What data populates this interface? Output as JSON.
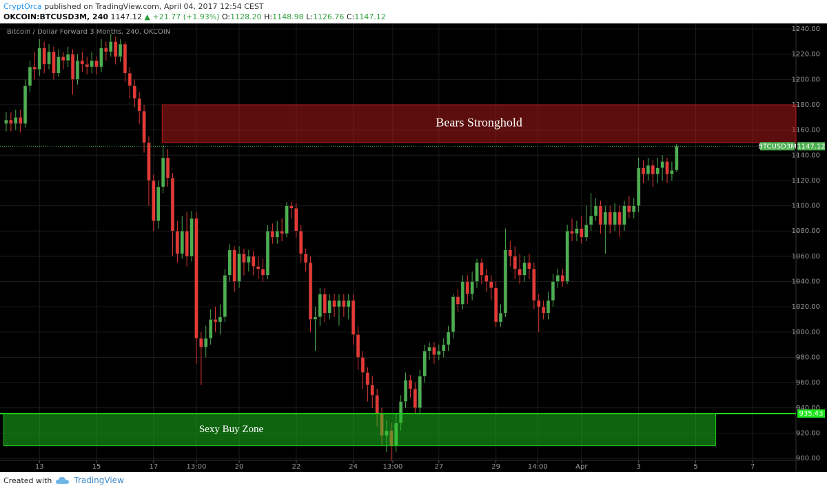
{
  "header": {
    "author": "CryptOrca",
    "published": "published on TradingView.com, April 04, 2017 12:54 CEST",
    "symbol": "OKCOIN:BTCUSD3M, 240",
    "last": "1147.12",
    "change": "▲ +21.77 (+1.93%)",
    "ohlc": [
      {
        "label": "O:",
        "value": "1128.20"
      },
      {
        "label": "H:",
        "value": "1148.98"
      },
      {
        "label": "L:",
        "value": "1126.76"
      },
      {
        "label": "C:",
        "value": "1147.12"
      }
    ]
  },
  "footer": {
    "created": "Created with",
    "brand": "TradingView"
  },
  "chart_data": {
    "type": "candlestick",
    "title": "Bitcoin / Dollar Forward 3 Months, 240, OKCOIN",
    "up_color": "#4caf50",
    "down_color": "#e53935",
    "grid": true,
    "x": [
      -7,
      -6,
      -5,
      -4,
      -3,
      -2,
      -1,
      0,
      1,
      2,
      3,
      4,
      5,
      6,
      7,
      8,
      9,
      10,
      11,
      12,
      13,
      14,
      15,
      16,
      17,
      18,
      19,
      20,
      21,
      22,
      23,
      24,
      25,
      26,
      27,
      28,
      29,
      30,
      31,
      32,
      33,
      34,
      35,
      36,
      37,
      38,
      39,
      40,
      41,
      42,
      43,
      44,
      45,
      46,
      47,
      48,
      49,
      50,
      51,
      52,
      53,
      54,
      55,
      56,
      57,
      58,
      59,
      60,
      61,
      62,
      63,
      64,
      65,
      66,
      67,
      68,
      69,
      70,
      71,
      72,
      73,
      74,
      75,
      76,
      77,
      78,
      79,
      80,
      81,
      82,
      83,
      84,
      85,
      86,
      87,
      88,
      89,
      90,
      91,
      92,
      93,
      94,
      95,
      96,
      97,
      98,
      99,
      100,
      101,
      102,
      103,
      104,
      105,
      106,
      107,
      108,
      109,
      110,
      111,
      112,
      113,
      114,
      115,
      116,
      117,
      118,
      119,
      120,
      121,
      122,
      123,
      124,
      125,
      126,
      127,
      128,
      129,
      130,
      131,
      132,
      133,
      134
    ],
    "open": [
      1165,
      1168,
      1165,
      1170,
      1165,
      1195,
      1210,
      1208,
      1225,
      1212,
      1222,
      1205,
      1218,
      1215,
      1220,
      1200,
      1215,
      1212,
      1210,
      1215,
      1210,
      1225,
      1222,
      1230,
      1218,
      1228,
      1205,
      1195,
      1185,
      1175,
      1150,
      1120,
      1088,
      1115,
      1138,
      1122,
      1080,
      1062,
      1080,
      1060,
      1090,
      995,
      988,
      995,
      1010,
      1008,
      1012,
      1045,
      1065,
      1040,
      1062,
      1055,
      1060,
      1052,
      1050,
      1045,
      1080,
      1075,
      1080,
      1078,
      1100,
      1098,
      1080,
      1062,
      1055,
      1010,
      1012,
      1030,
      1015,
      1025,
      1020,
      1025,
      1020,
      1025,
      998,
      980,
      968,
      958,
      950,
      935,
      918,
      922,
      910,
      928,
      945,
      962,
      955,
      940,
      965,
      985,
      988,
      982,
      985,
      990,
      1000,
      1028,
      1022,
      1040,
      1030,
      1040,
      1055,
      1045,
      1040,
      1035,
      1008,
      1015,
      1065,
      1060,
      1050,
      1045,
      1055,
      1050,
      1025,
      1020,
      1015,
      1025,
      1040,
      1045,
      1040,
      1080,
      1078,
      1082,
      1075,
      1085,
      1092,
      1100,
      1085,
      1095,
      1085,
      1095,
      1085,
      1100,
      1095,
      1100,
      1130,
      1125,
      1132,
      1125,
      1130,
      1135,
      1125,
      1128.2
    ],
    "high": [
      1174,
      1174,
      1176,
      1176,
      1200,
      1215,
      1222,
      1232,
      1230,
      1228,
      1226,
      1224,
      1222,
      1226,
      1224,
      1220,
      1222,
      1218,
      1222,
      1218,
      1232,
      1230,
      1236,
      1234,
      1232,
      1230,
      1210,
      1200,
      1190,
      1180,
      1155,
      1125,
      1120,
      1148,
      1145,
      1126,
      1088,
      1092,
      1095,
      1096,
      1095,
      1000,
      1005,
      1018,
      1020,
      1022,
      1050,
      1070,
      1068,
      1068,
      1066,
      1065,
      1064,
      1060,
      1058,
      1085,
      1086,
      1088,
      1090,
      1103,
      1103,
      1102,
      1085,
      1066,
      1060,
      1020,
      1035,
      1035,
      1030,
      1030,
      1030,
      1030,
      1030,
      1030,
      1005,
      985,
      972,
      965,
      955,
      940,
      930,
      928,
      935,
      950,
      968,
      966,
      960,
      970,
      990,
      992,
      992,
      990,
      995,
      1005,
      1030,
      1034,
      1045,
      1045,
      1048,
      1058,
      1058,
      1050,
      1045,
      1040,
      1022,
      1082,
      1072,
      1068,
      1062,
      1060,
      1062,
      1055,
      1030,
      1025,
      1032,
      1046,
      1050,
      1050,
      1085,
      1090,
      1088,
      1092,
      1100,
      1110,
      1106,
      1104,
      1100,
      1100,
      1102,
      1100,
      1104,
      1108,
      1106,
      1138,
      1136,
      1138,
      1136,
      1138,
      1140,
      1138,
      1135,
      1148.98
    ],
    "low": [
      1159,
      1159,
      1160,
      1158,
      1162,
      1190,
      1200,
      1203,
      1205,
      1208,
      1200,
      1202,
      1208,
      1210,
      1188,
      1196,
      1206,
      1204,
      1205,
      1204,
      1206,
      1215,
      1218,
      1212,
      1214,
      1198,
      1185,
      1178,
      1165,
      1142,
      1100,
      1080,
      1082,
      1110,
      1115,
      1060,
      1055,
      1058,
      1052,
      1056,
      975,
      958,
      980,
      990,
      1000,
      998,
      1008,
      1040,
      1032,
      1035,
      1045,
      1048,
      1045,
      1042,
      1040,
      1042,
      1070,
      1070,
      1072,
      1075,
      1090,
      1075,
      1055,
      1048,
      1000,
      985,
      1005,
      1008,
      1010,
      1012,
      1005,
      1012,
      1010,
      990,
      970,
      955,
      945,
      940,
      925,
      910,
      905,
      898,
      905,
      922,
      940,
      948,
      935,
      936,
      960,
      978,
      975,
      978,
      980,
      985,
      995,
      1016,
      1018,
      1022,
      1025,
      1035,
      1038,
      1032,
      1025,
      1004,
      1004,
      1012,
      1052,
      1042,
      1038,
      1040,
      1042,
      1018,
      1000,
      1010,
      1010,
      1020,
      1035,
      1036,
      1038,
      1072,
      1072,
      1070,
      1072,
      1080,
      1088,
      1078,
      1062,
      1078,
      1080,
      1075,
      1080,
      1090,
      1090,
      1095,
      1118,
      1120,
      1115,
      1118,
      1120,
      1118,
      1120,
      1126.76
    ],
    "close": [
      1168,
      1165,
      1170,
      1165,
      1195,
      1210,
      1208,
      1225,
      1212,
      1222,
      1205,
      1218,
      1215,
      1220,
      1200,
      1215,
      1212,
      1210,
      1215,
      1210,
      1225,
      1222,
      1230,
      1218,
      1228,
      1205,
      1195,
      1185,
      1175,
      1150,
      1120,
      1088,
      1115,
      1138,
      1122,
      1080,
      1062,
      1080,
      1060,
      1090,
      995,
      988,
      995,
      1010,
      1008,
      1012,
      1045,
      1065,
      1040,
      1062,
      1055,
      1060,
      1052,
      1050,
      1045,
      1080,
      1075,
      1080,
      1078,
      1100,
      1098,
      1080,
      1062,
      1055,
      1010,
      1012,
      1030,
      1015,
      1025,
      1020,
      1025,
      1020,
      1025,
      998,
      980,
      968,
      958,
      950,
      935,
      918,
      922,
      910,
      928,
      945,
      962,
      955,
      940,
      965,
      985,
      988,
      982,
      985,
      990,
      1000,
      1028,
      1022,
      1040,
      1030,
      1040,
      1055,
      1045,
      1040,
      1035,
      1008,
      1015,
      1065,
      1060,
      1050,
      1045,
      1055,
      1050,
      1025,
      1020,
      1015,
      1025,
      1040,
      1045,
      1040,
      1080,
      1078,
      1082,
      1075,
      1085,
      1092,
      1100,
      1085,
      1095,
      1085,
      1095,
      1085,
      1100,
      1095,
      1100,
      1130,
      1125,
      1132,
      1125,
      1130,
      1135,
      1125,
      1128,
      1147.12
    ],
    "xlim": [
      -8.3,
      159.1
    ],
    "xticks": [
      {
        "value": 0,
        "label": "13"
      },
      {
        "value": 12,
        "label": "15"
      },
      {
        "value": 24,
        "label": "17"
      },
      {
        "value": 33,
        "label": "13:00"
      },
      {
        "value": 42,
        "label": "20"
      },
      {
        "value": 54,
        "label": "22"
      },
      {
        "value": 66,
        "label": "24"
      },
      {
        "value": 74.3,
        "label": "13:00"
      },
      {
        "value": 84,
        "label": "27"
      },
      {
        "value": 96,
        "label": "29"
      },
      {
        "value": 104.8,
        "label": "14:00"
      },
      {
        "value": 114,
        "label": "Apr"
      },
      {
        "value": 126,
        "label": "3"
      },
      {
        "value": 138,
        "label": "5"
      },
      {
        "value": 150,
        "label": "7"
      }
    ],
    "ylim": [
      898.4,
      1244.4
    ],
    "yticks": [
      {
        "value": 900,
        "label": "900.00"
      },
      {
        "value": 920,
        "label": "920.00"
      },
      {
        "value": 940,
        "label": "940.00"
      },
      {
        "value": 960,
        "label": "960.00"
      },
      {
        "value": 980,
        "label": "980.00"
      },
      {
        "value": 1000,
        "label": "1000.00"
      },
      {
        "value": 1020,
        "label": "1020.00"
      },
      {
        "value": 1040,
        "label": "1040.00"
      },
      {
        "value": 1060,
        "label": "1060.00"
      },
      {
        "value": 1080,
        "label": "1080.00"
      },
      {
        "value": 1100,
        "label": "1100.00"
      },
      {
        "value": 1120,
        "label": "1120.00"
      },
      {
        "value": 1140,
        "label": "1140.00"
      },
      {
        "value": 1160,
        "label": "1160.00"
      },
      {
        "value": 1180,
        "label": "1180.00"
      },
      {
        "value": 1200,
        "label": "1200.00"
      },
      {
        "value": 1220,
        "label": "1220.00"
      },
      {
        "value": 1240,
        "label": "1240.00"
      }
    ],
    "zones": [
      {
        "label": "Bears Stronghold",
        "color": "#b71c1c",
        "xlim": [
          25.8,
          159.1
        ],
        "ylim": [
          1150,
          1180
        ]
      },
      {
        "label": "Sexy Buy Zone",
        "color": "#1ec81e",
        "xlim": [
          -7.5,
          142.2
        ],
        "ylim": [
          910,
          935.43
        ]
      }
    ],
    "price_lines": [
      {
        "name": "BTCUSD3M",
        "value": 1147.12,
        "color": "#4caf50",
        "style": "dotted"
      },
      {
        "value": 935.43,
        "color": "#1ee61e",
        "style": "solid"
      }
    ]
  }
}
